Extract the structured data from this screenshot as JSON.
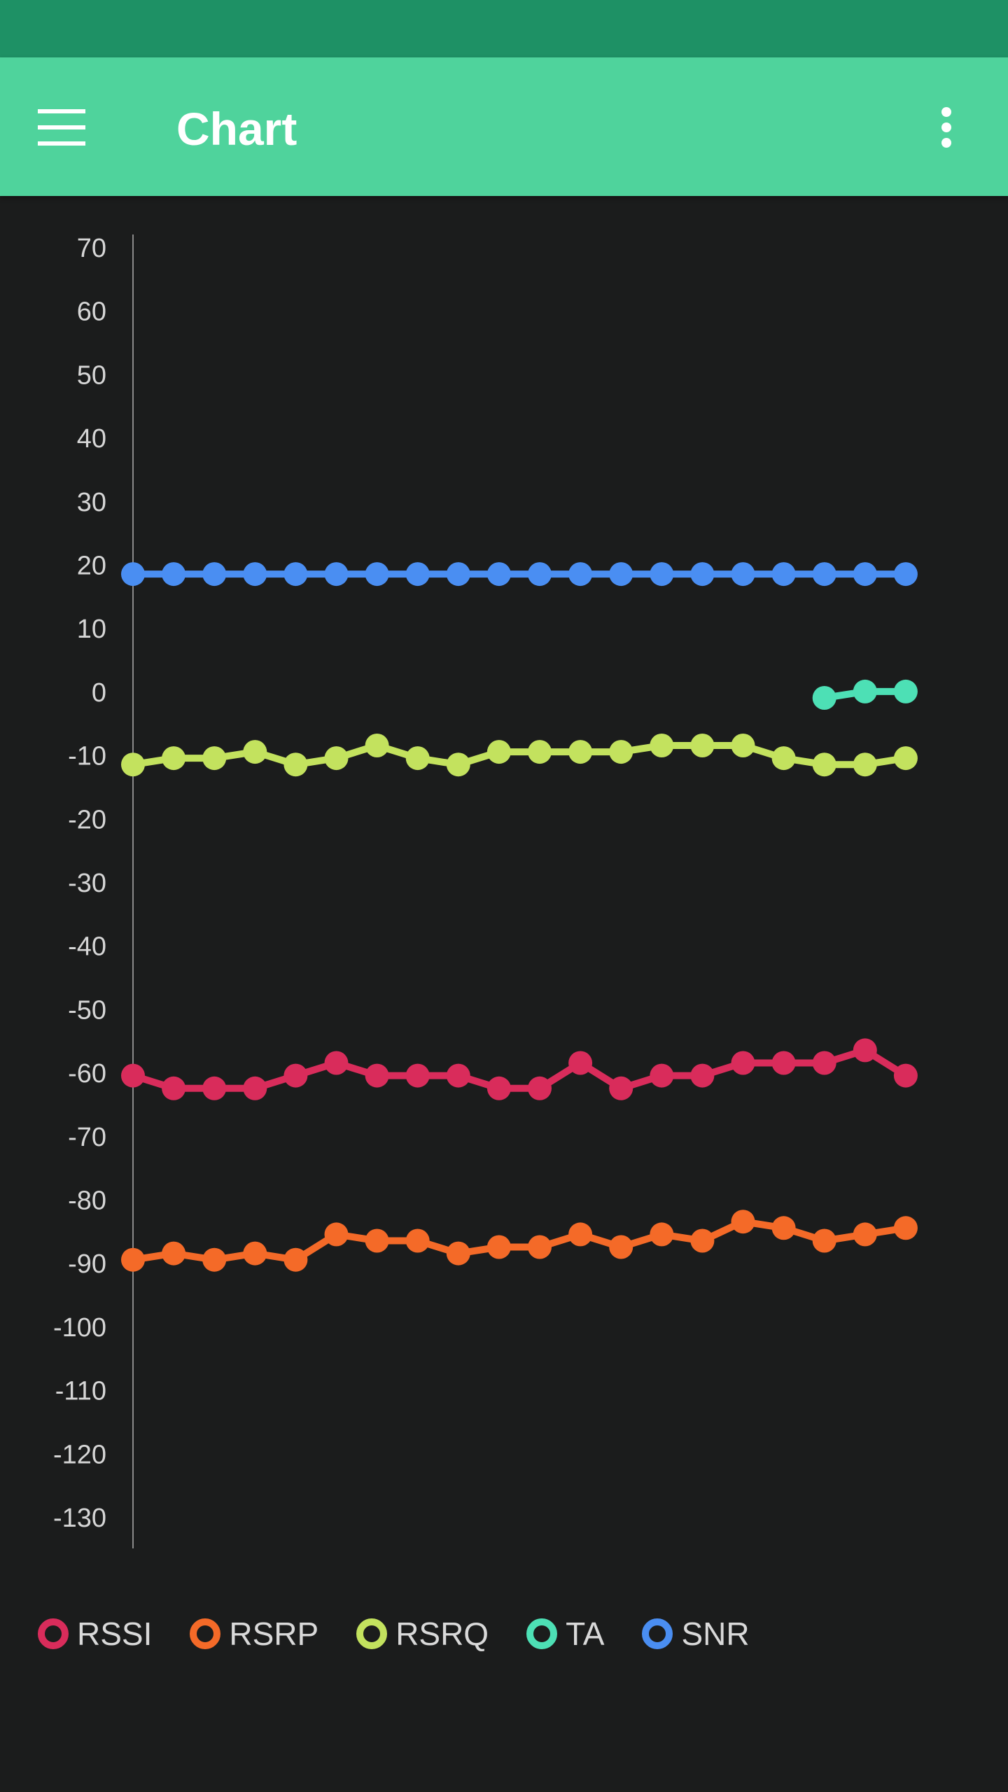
{
  "app_bar": {
    "title": "Chart",
    "menu_icon": "hamburger-menu-icon",
    "overflow_icon": "more-vertical-icon",
    "color": "#4fd39c",
    "status_bar_color": "#1e9165"
  },
  "chart_data": {
    "type": "line",
    "title": "",
    "xlabel": "",
    "ylabel": "",
    "ylim": [
      -130,
      70
    ],
    "y_ticks": [
      "70",
      "60",
      "50",
      "40",
      "30",
      "20",
      "10",
      "0",
      "-10",
      "-20",
      "-30",
      "-40",
      "-50",
      "-60",
      "-70",
      "-80",
      "-90",
      "-100",
      "-110",
      "-120",
      "-130"
    ],
    "point_count": 20,
    "grid": false,
    "legend_position": "bottom-left",
    "series": [
      {
        "name": "RSSI",
        "color": "#d92c5b",
        "start_index": 0,
        "values": [
          -60.5,
          -62.5,
          -62.5,
          -62.5,
          -60.5,
          -58.5,
          -60.5,
          -60.5,
          -60.5,
          -62.5,
          -62.5,
          -58.5,
          -62.5,
          -60.5,
          -60.5,
          -58.5,
          -58.5,
          -58.5,
          -56.5,
          -60.5
        ]
      },
      {
        "name": "RSRP",
        "color": "#f46a28",
        "start_index": 0,
        "values": [
          -89.5,
          -88.5,
          -89.5,
          -88.5,
          -89.5,
          -85.5,
          -86.5,
          -86.5,
          -88.5,
          -87.5,
          -87.5,
          -85.5,
          -87.5,
          -85.5,
          -86.5,
          -83.5,
          -84.5,
          -86.5,
          -85.5,
          -84.5
        ]
      },
      {
        "name": "RSRQ",
        "color": "#c3e25e",
        "start_index": 0,
        "values": [
          -11.5,
          -10.5,
          -10.5,
          -9.5,
          -11.5,
          -10.5,
          -8.5,
          -10.5,
          -11.5,
          -9.5,
          -9.5,
          -9.5,
          -9.5,
          -8.5,
          -8.5,
          -8.5,
          -10.5,
          -11.5,
          -11.5,
          -10.5
        ]
      },
      {
        "name": "TA",
        "color": "#4de0b5",
        "start_index": 17,
        "values": [
          -1.0,
          0.0,
          0.0
        ]
      },
      {
        "name": "SNR",
        "color": "#4a8ef2",
        "start_index": 0,
        "values": [
          18.5,
          18.5,
          18.5,
          18.5,
          18.5,
          18.5,
          18.5,
          18.5,
          18.5,
          18.5,
          18.5,
          18.5,
          18.5,
          18.5,
          18.5,
          18.5,
          18.5,
          18.5,
          18.5,
          18.5
        ]
      }
    ]
  }
}
